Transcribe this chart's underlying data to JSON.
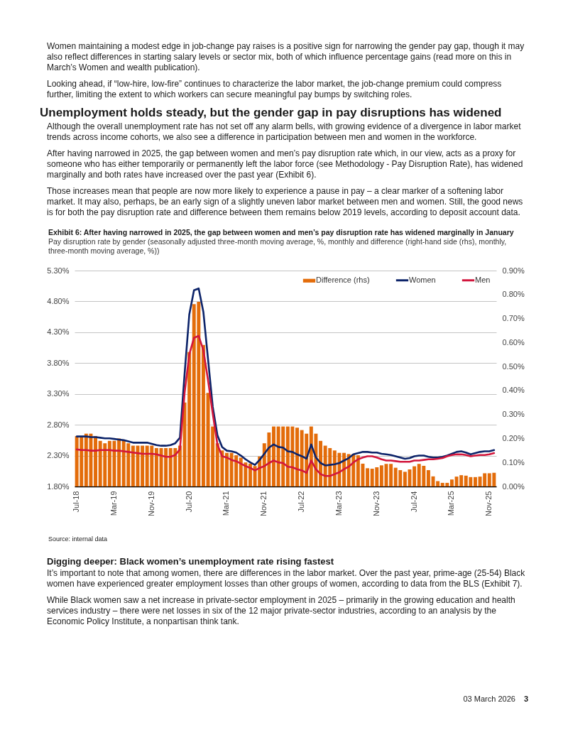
{
  "chart_data": {
    "type": "bar",
    "title": "Exhibit 6: After having narrowed in 2025, the gap between women and men’s pay disruption rate has widened marginally in January",
    "subtitle": "Pay disruption rate by gender (seasonally adjusted three-month moving average, %, monthly and difference (right-hand side (rhs), monthly, three-month moving average, %))",
    "annotations": [
      "Women maintaining a modest edge in job-change pay raises is a positive sign for narrowing the gender pay gap, though it may also reflect differences in starting salary levels or sector mix, both of which influence percentage gains (read more on this in March’s Women and wealth publication).",
      "Looking ahead, if “low-hire, low-fire” continues to characterize the labor market, the job-change premium could compress further, limiting the extent to which workers can secure meaningful pay bumps by switching roles.",
      "Unemployment holds steady, but the gender gap in pay disruptions has widened",
      "Although the overall unemployment rate has not set off any alarm bells, with growing evidence of a divergence in labor market trends across income cohorts, we also see a difference in participation between men and women in the workforce.",
      "After having narrowed in 2025, the gap between women and men’s pay disruption rate which, in our view, acts as a proxy for someone who has either temporarily or permanently left the labor force (see Methodology - Pay Disruption Rate), has widened marginally and both rates have increased over the past year (Exhibit 6).",
      "Those increases mean that people are now more likely to experience a pause in pay – a clear marker of a softening labor market. It may also, perhaps, be an early sign of a slightly uneven labor market between men and women. Still, the good news is for both the pay disruption rate and difference between them remains below 2019 levels, according to deposit account data.",
      "Source: internal data",
      "Digging deeper: Black women’s unemployment rate rising fastest",
      "It’s important to note that among women, there are differences in the labor market. Over the past year, prime-age (25-54) Black women have experienced greater employment losses than other groups of women, according to data from the BLS (Exhibit 7).",
      "While Black women saw a net increase in private-sector employment in 2025 – primarily in the growing education and health services industry – there were net losses in six of the 12 major private-sector industries, according to an analysis by the Economic Policy Institute, a nonpartisan think tank.",
      "03 March 2026",
      "3"
    ],
    "categories": [
      "Jul-18",
      null,
      null,
      null,
      null,
      null,
      null,
      null,
      "Mar-19",
      null,
      null,
      null,
      null,
      null,
      null,
      null,
      "Nov-19",
      null,
      null,
      null,
      null,
      null,
      null,
      null,
      "Jul-20",
      null,
      null,
      null,
      null,
      null,
      null,
      null,
      "Mar-21",
      null,
      null,
      null,
      null,
      null,
      null,
      null,
      "Nov-21",
      null,
      null,
      null,
      null,
      null,
      null,
      null,
      "Jul-22",
      null,
      null,
      null,
      null,
      null,
      null,
      null,
      "Mar-23",
      null,
      null,
      null,
      null,
      null,
      null,
      null,
      "Nov-23",
      null,
      null,
      null,
      null,
      null,
      null,
      null,
      "Jul-24",
      null,
      null,
      null,
      null,
      null,
      null,
      null,
      "Mar-25",
      null,
      null,
      null,
      null,
      null,
      null,
      null,
      "Nov-25",
      null
    ],
    "series": [
      {
        "name": "Difference (rhs)",
        "axis": "y2",
        "color": "#e36c0a",
        "values": [
          0.21,
          0.21,
          0.22,
          0.22,
          0.21,
          0.19,
          0.18,
          0.19,
          0.19,
          0.2,
          0.19,
          0.18,
          0.17,
          0.17,
          0.17,
          0.17,
          0.17,
          0.16,
          0.16,
          0.16,
          0.16,
          0.16,
          0.17,
          0.35,
          0.56,
          0.76,
          0.77,
          0.59,
          0.39,
          0.25,
          0.18,
          0.15,
          0.14,
          0.14,
          0.13,
          0.12,
          0.1,
          0.095,
          0.085,
          0.125,
          0.18,
          0.225,
          0.25,
          0.25,
          0.25,
          0.25,
          0.25,
          0.245,
          0.235,
          0.22,
          0.25,
          0.22,
          0.19,
          0.17,
          0.16,
          0.15,
          0.14,
          0.14,
          0.135,
          0.135,
          0.13,
          0.095,
          0.076,
          0.074,
          0.08,
          0.088,
          0.094,
          0.094,
          0.078,
          0.068,
          0.061,
          0.071,
          0.084,
          0.094,
          0.086,
          0.068,
          0.042,
          0.022,
          0.015,
          0.015,
          0.029,
          0.041,
          0.047,
          0.045,
          0.039,
          0.039,
          0.041,
          0.055,
          0.055,
          0.057
        ]
      },
      {
        "name": "Women",
        "type": "line",
        "color": "#0c2369",
        "values": [
          2.61,
          2.61,
          2.61,
          2.6,
          2.6,
          2.59,
          2.58,
          2.58,
          2.57,
          2.56,
          2.55,
          2.53,
          2.51,
          2.51,
          2.51,
          2.51,
          2.49,
          2.47,
          2.46,
          2.46,
          2.47,
          2.5,
          2.59,
          3.63,
          4.59,
          4.98,
          5.01,
          4.63,
          3.86,
          3.09,
          2.63,
          2.44,
          2.38,
          2.37,
          2.35,
          2.3,
          2.24,
          2.19,
          2.15,
          2.23,
          2.33,
          2.43,
          2.48,
          2.44,
          2.43,
          2.37,
          2.36,
          2.32,
          2.29,
          2.25,
          2.48,
          2.27,
          2.18,
          2.14,
          2.15,
          2.16,
          2.18,
          2.22,
          2.26,
          2.32,
          2.34,
          2.36,
          2.36,
          2.35,
          2.35,
          2.33,
          2.32,
          2.31,
          2.29,
          2.27,
          2.25,
          2.26,
          2.29,
          2.3,
          2.3,
          2.28,
          2.27,
          2.27,
          2.28,
          2.3,
          2.33,
          2.36,
          2.37,
          2.35,
          2.32,
          2.34,
          2.36,
          2.37,
          2.37,
          2.39
        ]
      },
      {
        "name": "Men",
        "type": "line",
        "color": "#d2163c",
        "values": [
          2.4,
          2.39,
          2.39,
          2.38,
          2.38,
          2.39,
          2.39,
          2.39,
          2.38,
          2.38,
          2.37,
          2.36,
          2.35,
          2.34,
          2.33,
          2.33,
          2.33,
          2.32,
          2.3,
          2.28,
          2.28,
          2.31,
          2.4,
          3.32,
          3.94,
          4.21,
          4.24,
          4.01,
          3.52,
          2.98,
          2.48,
          2.29,
          2.27,
          2.23,
          2.21,
          2.17,
          2.13,
          2.1,
          2.06,
          2.1,
          2.13,
          2.18,
          2.22,
          2.19,
          2.18,
          2.12,
          2.11,
          2.08,
          2.06,
          2.02,
          2.22,
          2.08,
          2.0,
          1.97,
          1.97,
          2.0,
          2.03,
          2.08,
          2.12,
          2.19,
          2.24,
          2.27,
          2.29,
          2.29,
          2.27,
          2.24,
          2.22,
          2.22,
          2.21,
          2.2,
          2.2,
          2.2,
          2.22,
          2.22,
          2.23,
          2.24,
          2.24,
          2.25,
          2.26,
          2.29,
          2.31,
          2.32,
          2.32,
          2.31,
          2.29,
          2.3,
          2.31,
          2.31,
          2.32,
          2.34
        ]
      }
    ],
    "ylim": [
      1.8,
      5.3
    ],
    "yticks": [
      {
        "value": 1.8,
        "label": "1.80%"
      },
      {
        "value": 2.3,
        "label": "2.30%"
      },
      {
        "value": 2.8,
        "label": "2.80%"
      },
      {
        "value": 3.3,
        "label": "3.30%"
      },
      {
        "value": 3.8,
        "label": "3.80%"
      },
      {
        "value": 4.3,
        "label": "4.30%"
      },
      {
        "value": 4.8,
        "label": "4.80%"
      },
      {
        "value": 5.3,
        "label": "5.30%"
      }
    ],
    "y2lim": [
      0,
      0.9
    ],
    "y2ticks": [
      {
        "value": 0,
        "label": "0.00%"
      },
      {
        "value": 0.1,
        "label": "0.10%"
      },
      {
        "value": 0.2,
        "label": "0.20%"
      },
      {
        "value": 0.3,
        "label": "0.30%"
      },
      {
        "value": 0.4,
        "label": "0.40%"
      },
      {
        "value": 0.5,
        "label": "0.50%"
      },
      {
        "value": 0.6,
        "label": "0.60%"
      },
      {
        "value": 0.7,
        "label": "0.70%"
      },
      {
        "value": 0.8,
        "label": "0.80%"
      },
      {
        "value": 0.9,
        "label": "0.90%"
      }
    ],
    "grid": "y",
    "legend": "top right"
  }
}
